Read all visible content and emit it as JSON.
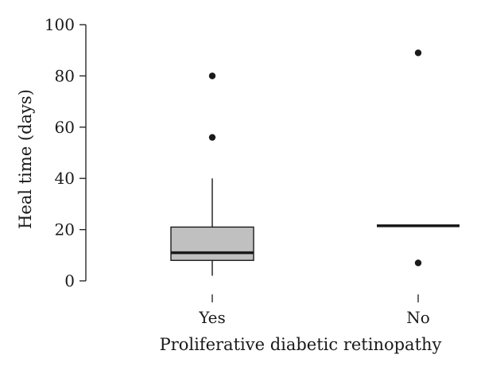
{
  "chart_data": {
    "type": "box",
    "xlabel": "Proliferative diabetic retinopathy",
    "ylabel": "Heal time (days)",
    "ylim": [
      0,
      100
    ],
    "yticks": [
      0,
      20,
      40,
      60,
      80,
      100
    ],
    "ytick_labels": [
      "0",
      "20",
      "40",
      "60",
      "80",
      "100"
    ],
    "categories": [
      "Yes",
      "No"
    ],
    "boxes": [
      {
        "category": "Yes",
        "whisker_low": 2,
        "q1": 8,
        "median": 11,
        "q3": 21,
        "whisker_high": 40,
        "outliers": [
          56,
          80
        ]
      },
      {
        "category": "No",
        "whisker_low": 21.5,
        "q1": 21.5,
        "median": 21.5,
        "q3": 21.5,
        "whisker_high": 21.5,
        "outliers": [
          7,
          89
        ]
      }
    ],
    "box_fill": "#c0c0c0",
    "line_color": "#1a1a1a",
    "grid": false,
    "legend": "none"
  }
}
